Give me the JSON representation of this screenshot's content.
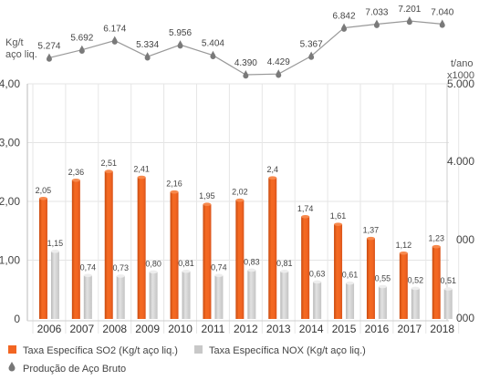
{
  "chart_data": {
    "type": "bar",
    "categories": [
      "2006",
      "2007",
      "2008",
      "2009",
      "2010",
      "2011",
      "2012",
      "2013",
      "2014",
      "2015",
      "2016",
      "2017",
      "2018"
    ],
    "series": [
      {
        "name": "Taxa Específica SO2 (Kg/t aço liq.)",
        "type": "bar",
        "axis": "left",
        "color": "#f26522",
        "values": [
          2.05,
          2.36,
          2.51,
          2.41,
          2.16,
          1.95,
          2.02,
          2.4,
          1.74,
          1.61,
          1.37,
          1.12,
          1.23
        ],
        "labels": [
          "2,05",
          "2,36",
          "2,51",
          "2,41",
          "2,16",
          "1,95",
          "2,02",
          "2,4",
          "1,74",
          "1,61",
          "1,37",
          "1,12",
          "1,23"
        ]
      },
      {
        "name": "Taxa Específica NOX (Kg/t aço liq.)",
        "type": "bar",
        "axis": "left",
        "color": "#d3d3d3",
        "values": [
          1.15,
          0.74,
          0.73,
          0.8,
          0.81,
          0.74,
          0.83,
          0.81,
          0.63,
          0.61,
          0.55,
          0.52,
          0.51
        ],
        "labels": [
          "1,15",
          "0,74",
          "0,73",
          "0,80",
          "0,81",
          "0,74",
          "0,83",
          "0,81",
          "0,63",
          "0,61",
          "0,55",
          "0,52",
          "0,51"
        ]
      },
      {
        "name": "Produção de Aço Bruto",
        "type": "line",
        "axis": "top",
        "color": "#888888",
        "values": [
          5274,
          5692,
          6174,
          5334,
          5956,
          5404,
          4390,
          4429,
          5367,
          6842,
          7033,
          7201,
          7040
        ],
        "labels": [
          "5.274",
          "5.692",
          "6.174",
          "5.334",
          "5.956",
          "5.404",
          "4.390",
          "4.429",
          "5.367",
          "6.842",
          "7.033",
          "7.201",
          "7.040"
        ]
      }
    ],
    "left_axis": {
      "label_lines": [
        "Kg/t",
        "aço liq."
      ],
      "ylim": [
        0,
        4
      ],
      "ticks": [
        "0",
        "1,00",
        "2,00",
        "3,00",
        "4,00"
      ]
    },
    "right_axis": {
      "label_lines": [
        "t/ano",
        "x1000"
      ],
      "ticks": [
        "000",
        "000",
        "4.000",
        "5.000"
      ]
    },
    "legend": [
      "Taxa Específica SO2 (Kg/t aço liq.)",
      "Taxa Específica NOX (Kg/t aço liq.)",
      "Produção de Aço Bruto"
    ],
    "legend_position": "bottom-left",
    "grid": true
  }
}
